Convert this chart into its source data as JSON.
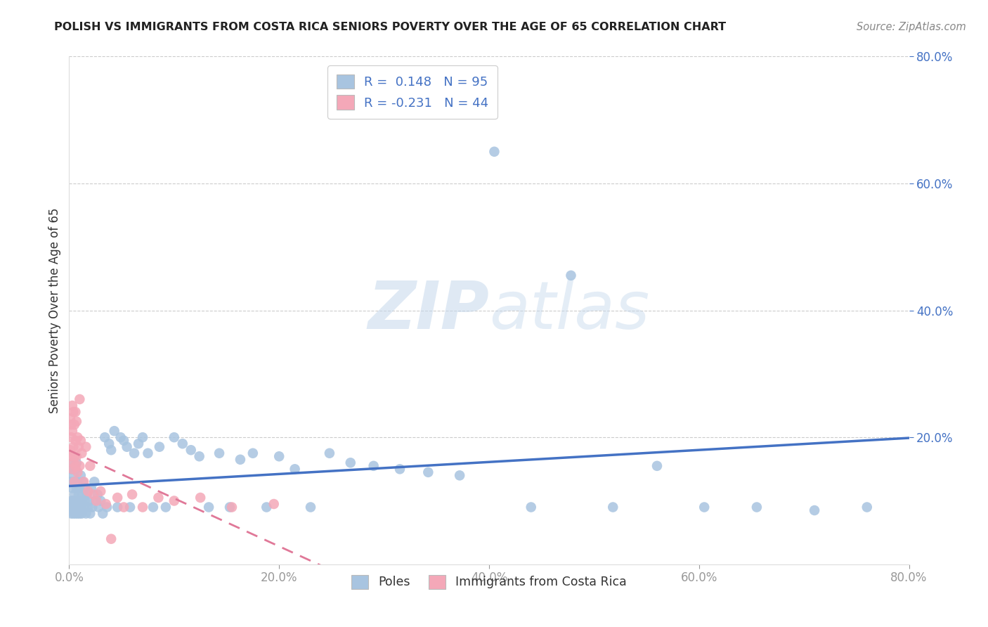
{
  "title": "POLISH VS IMMIGRANTS FROM COSTA RICA SENIORS POVERTY OVER THE AGE OF 65 CORRELATION CHART",
  "source": "Source: ZipAtlas.com",
  "ylabel": "Seniors Poverty Over the Age of 65",
  "xlim": [
    0.0,
    0.8
  ],
  "ylim": [
    0.0,
    0.8
  ],
  "xticks": [
    0.0,
    0.2,
    0.4,
    0.6,
    0.8
  ],
  "yticks": [
    0.2,
    0.4,
    0.6,
    0.8
  ],
  "xticklabels": [
    "0.0%",
    "20.0%",
    "40.0%",
    "60.0%",
    "80.0%"
  ],
  "yticklabels": [
    "20.0%",
    "40.0%",
    "60.0%",
    "80.0%"
  ],
  "blue_R": 0.148,
  "blue_N": 95,
  "pink_R": -0.231,
  "pink_N": 44,
  "blue_color": "#a8c4e0",
  "pink_color": "#f4a8b8",
  "blue_line_color": "#4472c4",
  "pink_line_color": "#e07898",
  "legend_label_blue": "Poles",
  "legend_label_pink": "Immigrants from Costa Rica",
  "blue_scatter_x": [
    0.001,
    0.001,
    0.002,
    0.002,
    0.002,
    0.003,
    0.003,
    0.003,
    0.004,
    0.004,
    0.004,
    0.005,
    0.005,
    0.005,
    0.006,
    0.006,
    0.006,
    0.007,
    0.007,
    0.007,
    0.008,
    0.008,
    0.008,
    0.009,
    0.009,
    0.01,
    0.01,
    0.01,
    0.011,
    0.011,
    0.012,
    0.012,
    0.013,
    0.013,
    0.014,
    0.015,
    0.015,
    0.016,
    0.017,
    0.018,
    0.019,
    0.02,
    0.021,
    0.022,
    0.024,
    0.025,
    0.027,
    0.028,
    0.03,
    0.032,
    0.034,
    0.036,
    0.038,
    0.04,
    0.043,
    0.046,
    0.049,
    0.052,
    0.055,
    0.058,
    0.062,
    0.066,
    0.07,
    0.075,
    0.08,
    0.086,
    0.092,
    0.1,
    0.108,
    0.116,
    0.124,
    0.133,
    0.143,
    0.153,
    0.163,
    0.175,
    0.188,
    0.2,
    0.215,
    0.23,
    0.248,
    0.268,
    0.29,
    0.315,
    0.342,
    0.372,
    0.405,
    0.44,
    0.478,
    0.518,
    0.56,
    0.605,
    0.655,
    0.71,
    0.76
  ],
  "blue_scatter_y": [
    0.09,
    0.13,
    0.1,
    0.15,
    0.08,
    0.12,
    0.09,
    0.16,
    0.1,
    0.14,
    0.08,
    0.11,
    0.09,
    0.13,
    0.1,
    0.15,
    0.08,
    0.12,
    0.09,
    0.16,
    0.1,
    0.08,
    0.13,
    0.09,
    0.11,
    0.12,
    0.08,
    0.1,
    0.09,
    0.14,
    0.1,
    0.08,
    0.11,
    0.13,
    0.09,
    0.1,
    0.12,
    0.08,
    0.11,
    0.09,
    0.1,
    0.08,
    0.12,
    0.09,
    0.13,
    0.1,
    0.11,
    0.09,
    0.1,
    0.08,
    0.2,
    0.09,
    0.19,
    0.18,
    0.21,
    0.09,
    0.2,
    0.195,
    0.185,
    0.09,
    0.175,
    0.19,
    0.2,
    0.175,
    0.09,
    0.185,
    0.09,
    0.2,
    0.19,
    0.18,
    0.17,
    0.09,
    0.175,
    0.09,
    0.165,
    0.175,
    0.09,
    0.17,
    0.15,
    0.09,
    0.175,
    0.16,
    0.155,
    0.15,
    0.145,
    0.14,
    0.65,
    0.09,
    0.455,
    0.09,
    0.155,
    0.09,
    0.09,
    0.085,
    0.09
  ],
  "pink_scatter_x": [
    0.001,
    0.001,
    0.002,
    0.002,
    0.002,
    0.003,
    0.003,
    0.003,
    0.004,
    0.004,
    0.004,
    0.005,
    0.005,
    0.005,
    0.006,
    0.006,
    0.006,
    0.007,
    0.007,
    0.008,
    0.008,
    0.009,
    0.01,
    0.01,
    0.011,
    0.012,
    0.014,
    0.016,
    0.018,
    0.02,
    0.023,
    0.026,
    0.03,
    0.035,
    0.04,
    0.046,
    0.052,
    0.06,
    0.07,
    0.085,
    0.1,
    0.125,
    0.155,
    0.195
  ],
  "pink_scatter_y": [
    0.23,
    0.18,
    0.22,
    0.2,
    0.17,
    0.25,
    0.21,
    0.15,
    0.24,
    0.185,
    0.16,
    0.22,
    0.17,
    0.13,
    0.24,
    0.195,
    0.155,
    0.225,
    0.17,
    0.2,
    0.145,
    0.185,
    0.26,
    0.155,
    0.195,
    0.175,
    0.13,
    0.185,
    0.115,
    0.155,
    0.11,
    0.1,
    0.115,
    0.095,
    0.04,
    0.105,
    0.09,
    0.11,
    0.09,
    0.105,
    0.1,
    0.105,
    0.09,
    0.095
  ]
}
